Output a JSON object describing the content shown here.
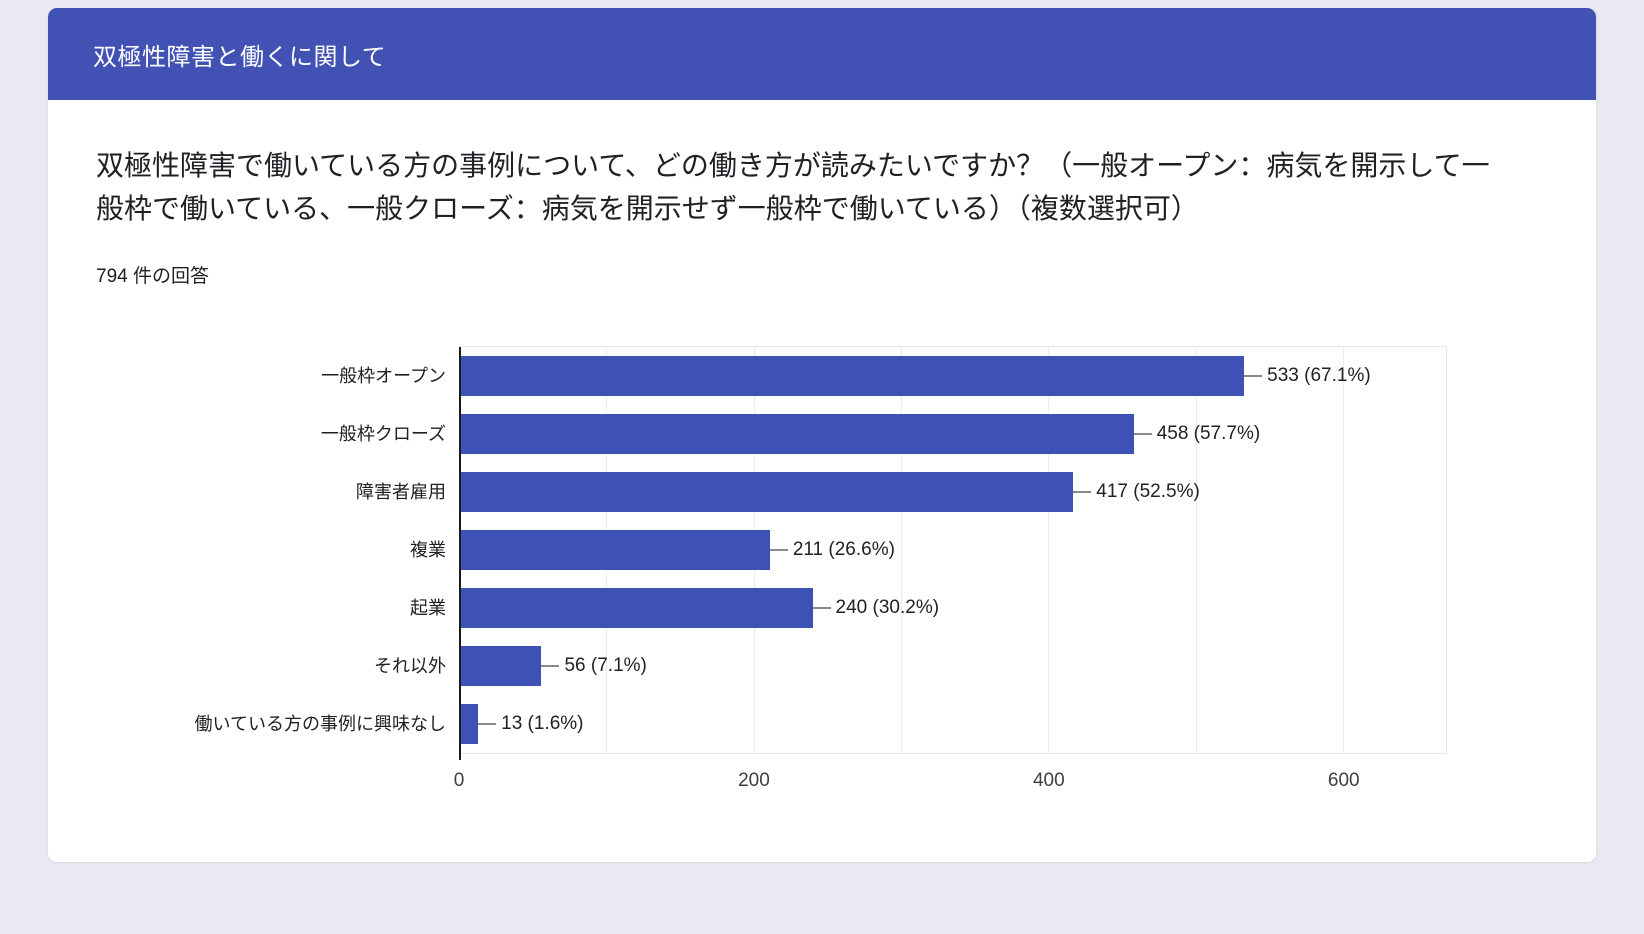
{
  "card": {
    "header": {
      "title": "双極性障害と働くに関して",
      "background": "#4252b4"
    },
    "question": "双極性障害で働いている方の事例について、どの働き方が読みたいですか？（一般オープン：病気を開示して一般枠で働いている、一般クローズ：病気を開示せず一般枠で働いている）（複数選択可）",
    "response_count": "794 件の回答"
  },
  "chart_data": {
    "type": "bar",
    "orientation": "horizontal",
    "title": "",
    "categories": [
      "一般枠オープン",
      "一般枠クローズ",
      "障害者雇用",
      "複業",
      "起業",
      "それ以外",
      "働いている方の事例に興味なし"
    ],
    "values": [
      533,
      458,
      417,
      211,
      240,
      56,
      13
    ],
    "percentages": [
      67.1,
      57.7,
      52.5,
      26.6,
      30.2,
      7.1,
      1.6
    ],
    "value_labels": [
      "533 (67.1%)",
      "458 (57.7%)",
      "417 (52.5%)",
      "211 (26.6%)",
      "240 (30.2%)",
      "56 (7.1%)",
      "13 (1.6%)"
    ],
    "total_responses": 794,
    "xlim": [
      0,
      600
    ],
    "x_ticks": [
      0,
      200,
      400,
      600
    ],
    "grid": true,
    "legend": false,
    "bar_color": "#3e51b4",
    "grid_color": "#ececec",
    "axis_color": "#1a1a1a"
  }
}
